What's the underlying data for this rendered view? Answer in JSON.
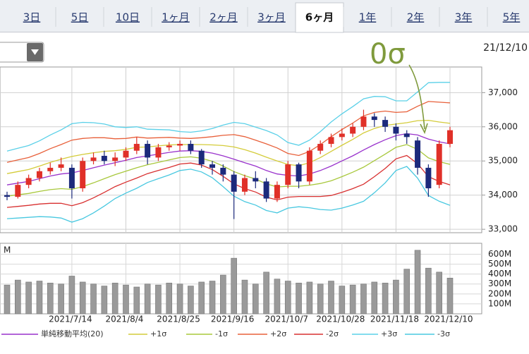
{
  "tabs": [
    "3日",
    "5日",
    "10日",
    "1ヶ月",
    "2ヶ月",
    "3ヶ月",
    "6ヶ月",
    "1年",
    "2年",
    "3年",
    "5年"
  ],
  "selected_tab": 6,
  "date": "21/12/10",
  "chart_data": {
    "type": "candlestick",
    "annotation": "0σ",
    "categories": [
      null,
      null,
      null,
      null,
      null,
      null,
      "2021/7/14",
      null,
      null,
      null,
      null,
      "2021/8/4",
      null,
      null,
      null,
      null,
      "2021/8/25",
      null,
      null,
      null,
      null,
      "2021/9/16",
      null,
      null,
      null,
      null,
      "2021/10/7",
      null,
      null,
      null,
      null,
      "2021/10/28",
      null,
      null,
      null,
      null,
      "2021/11/18",
      null,
      null,
      null,
      null,
      "2021/12/10"
    ],
    "open": [
      34000,
      33950,
      34300,
      34500,
      34700,
      34800,
      34800,
      34200,
      35000,
      35150,
      35000,
      35100,
      35300,
      35500,
      35100,
      35400,
      35450,
      35500,
      35300,
      34900,
      34800,
      34600,
      34100,
      34500,
      34400,
      33900,
      34300,
      34900,
      34400,
      35300,
      35500,
      35700,
      35800,
      36000,
      36300,
      36200,
      36000,
      35800,
      35600,
      34800,
      34300,
      35500
    ],
    "high": [
      34100,
      34400,
      34600,
      34800,
      34950,
      35100,
      34900,
      35100,
      35250,
      35300,
      35250,
      35400,
      35700,
      35600,
      35500,
      35550,
      35600,
      35600,
      35350,
      35000,
      34900,
      34700,
      34600,
      34700,
      34500,
      34400,
      35000,
      34950,
      35400,
      35600,
      35800,
      35950,
      36100,
      36500,
      36400,
      36300,
      36100,
      35900,
      35700,
      34900,
      35600,
      36000
    ],
    "low": [
      33850,
      33900,
      34200,
      34400,
      34600,
      34700,
      33900,
      34100,
      34900,
      34900,
      34850,
      35000,
      35200,
      34900,
      35000,
      35300,
      35300,
      35200,
      34800,
      34600,
      34400,
      33300,
      34000,
      34200,
      33800,
      33800,
      34200,
      34200,
      34300,
      35200,
      35400,
      35600,
      35700,
      35900,
      36000,
      35850,
      35600,
      35500,
      34600,
      33950,
      34200,
      35400
    ],
    "close": [
      33950,
      34300,
      34500,
      34700,
      34800,
      34900,
      34200,
      35000,
      35100,
      35000,
      35100,
      35300,
      35500,
      35100,
      35400,
      35450,
      35500,
      35300,
      34900,
      34800,
      34600,
      34100,
      34500,
      34400,
      33900,
      34300,
      34900,
      34400,
      35300,
      35500,
      35700,
      35800,
      36000,
      36300,
      36200,
      36000,
      35800,
      35700,
      34800,
      34200,
      35500,
      35900
    ],
    "up_color": "#e03028",
    "down_color": "#1c2a7c",
    "series": [
      {
        "name": "単純移動平均(20)",
        "color": "#9932cc",
        "values": [
          34300,
          34350,
          34400,
          34480,
          34560,
          34620,
          34650,
          34720,
          34800,
          34880,
          34950,
          35020,
          35100,
          35150,
          35200,
          35250,
          35290,
          35300,
          35280,
          35230,
          35150,
          35050,
          34950,
          34850,
          34720,
          34620,
          34580,
          34560,
          34620,
          34720,
          34850,
          35000,
          35150,
          35320,
          35480,
          35620,
          35740,
          35800,
          35760,
          35640,
          35560,
          35500
        ]
      },
      {
        "name": "+1σ",
        "color": "#d4cc3a",
        "values": [
          34630,
          34690,
          34750,
          34850,
          34960,
          35050,
          35130,
          35190,
          35240,
          35280,
          35300,
          35340,
          35400,
          35410,
          35440,
          35470,
          35480,
          35480,
          35480,
          35470,
          35450,
          35410,
          35330,
          35230,
          35110,
          35000,
          34900,
          34860,
          34950,
          35100,
          35280,
          35460,
          35630,
          35820,
          35950,
          36040,
          36080,
          36120,
          36180,
          36190,
          36140,
          36100
        ]
      },
      {
        "name": "-1σ",
        "color": "#a8c83c",
        "values": [
          33970,
          34010,
          34050,
          34110,
          34160,
          34190,
          34170,
          34250,
          34360,
          34480,
          34600,
          34700,
          34800,
          34890,
          34960,
          35030,
          35100,
          35120,
          35080,
          34990,
          34850,
          34690,
          34570,
          34470,
          34330,
          34240,
          34260,
          34260,
          34290,
          34340,
          34420,
          34540,
          34670,
          34820,
          35010,
          35200,
          35400,
          35480,
          35340,
          35090,
          34980,
          34900
        ]
      },
      {
        "name": "+2σ",
        "color": "#e8603a",
        "values": [
          34960,
          35030,
          35100,
          35220,
          35360,
          35480,
          35610,
          35660,
          35680,
          35680,
          35650,
          35660,
          35700,
          35670,
          35680,
          35690,
          35670,
          35660,
          35680,
          35710,
          35750,
          35770,
          35710,
          35610,
          35500,
          35380,
          35220,
          35160,
          35280,
          35480,
          35710,
          35920,
          36110,
          36320,
          36420,
          36460,
          36420,
          36440,
          36600,
          36740,
          36720,
          36700
        ]
      },
      {
        "name": "-2σ",
        "color": "#d83030",
        "values": [
          33640,
          33670,
          33700,
          33740,
          33760,
          33760,
          33690,
          33780,
          33920,
          34080,
          34250,
          34380,
          34500,
          34630,
          34720,
          34810,
          34910,
          34940,
          34880,
          34750,
          34550,
          34330,
          34190,
          34090,
          33940,
          33860,
          33940,
          33960,
          33960,
          33960,
          33990,
          34080,
          34190,
          34320,
          34540,
          34780,
          35060,
          35160,
          34920,
          34540,
          34400,
          34300
        ]
      },
      {
        "name": "+3σ",
        "color": "#5ad0e8",
        "values": [
          35290,
          35370,
          35450,
          35590,
          35760,
          35910,
          36090,
          36130,
          36120,
          36080,
          36000,
          35980,
          36000,
          35930,
          35920,
          35910,
          35860,
          35840,
          35880,
          35950,
          36050,
          36130,
          36090,
          35990,
          35890,
          35760,
          35540,
          35460,
          35610,
          35860,
          36140,
          36380,
          36590,
          36820,
          36890,
          36880,
          36760,
          36760,
          37020,
          37290,
          37300,
          37300
        ]
      },
      {
        "name": "-3σ",
        "color": "#48c8e0",
        "values": [
          33310,
          33330,
          33350,
          33370,
          33360,
          33330,
          33210,
          33310,
          33480,
          33680,
          33900,
          34060,
          34200,
          34370,
          34480,
          34590,
          34720,
          34760,
          34680,
          34510,
          34250,
          33970,
          33810,
          33710,
          33550,
          33480,
          33620,
          33660,
          33630,
          33580,
          33560,
          33620,
          33710,
          33820,
          34070,
          34360,
          34720,
          34840,
          34500,
          33990,
          33820,
          33700
        ]
      }
    ],
    "ylim": [
      32900,
      37750
    ],
    "yticks": [
      {
        "value": 33000,
        "label": "33,000"
      },
      {
        "value": 34000,
        "label": "34,000"
      },
      {
        "value": 35000,
        "label": "35,000"
      },
      {
        "value": 36000,
        "label": "36,000"
      },
      {
        "value": 37000,
        "label": "37,000"
      }
    ],
    "grid": true,
    "volume": {
      "unit": "M",
      "color": "#9a9a9a",
      "values": [
        290,
        340,
        320,
        330,
        310,
        300,
        380,
        320,
        300,
        280,
        310,
        290,
        270,
        300,
        290,
        310,
        300,
        280,
        320,
        330,
        390,
        560,
        340,
        300,
        420,
        350,
        330,
        310,
        320,
        300,
        330,
        280,
        290,
        300,
        320,
        310,
        340,
        450,
        640,
        460,
        420,
        360
      ],
      "ylim": [
        0,
        710
      ],
      "yticks": [
        {
          "value": 100,
          "label": "100M"
        },
        {
          "value": 200,
          "label": "200M"
        },
        {
          "value": 300,
          "label": "300M"
        },
        {
          "value": 400,
          "label": "400M"
        },
        {
          "value": 500,
          "label": "500M"
        },
        {
          "value": 600,
          "label": "600M"
        }
      ]
    }
  }
}
